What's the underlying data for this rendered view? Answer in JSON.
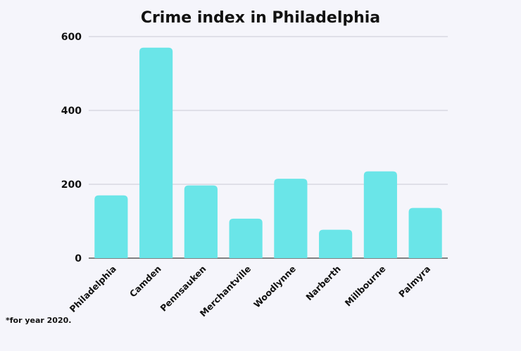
{
  "chart_data": {
    "type": "bar",
    "title": "Crime index in Philadelphia",
    "categories": [
      "Philadelphia",
      "Camden",
      "Pennsauken",
      "Merchantville",
      "Woodlynne",
      "Narberth",
      "Millbourne",
      "Palmyra"
    ],
    "values": [
      170,
      570,
      197,
      107,
      215,
      77,
      235,
      136
    ],
    "ylim": [
      0,
      600
    ],
    "yticks": [
      0,
      200,
      400,
      600
    ],
    "xlabel": "",
    "ylabel": "",
    "grid": true,
    "bar_color": "#6ae5e8",
    "footnote": "*for year 2020."
  }
}
